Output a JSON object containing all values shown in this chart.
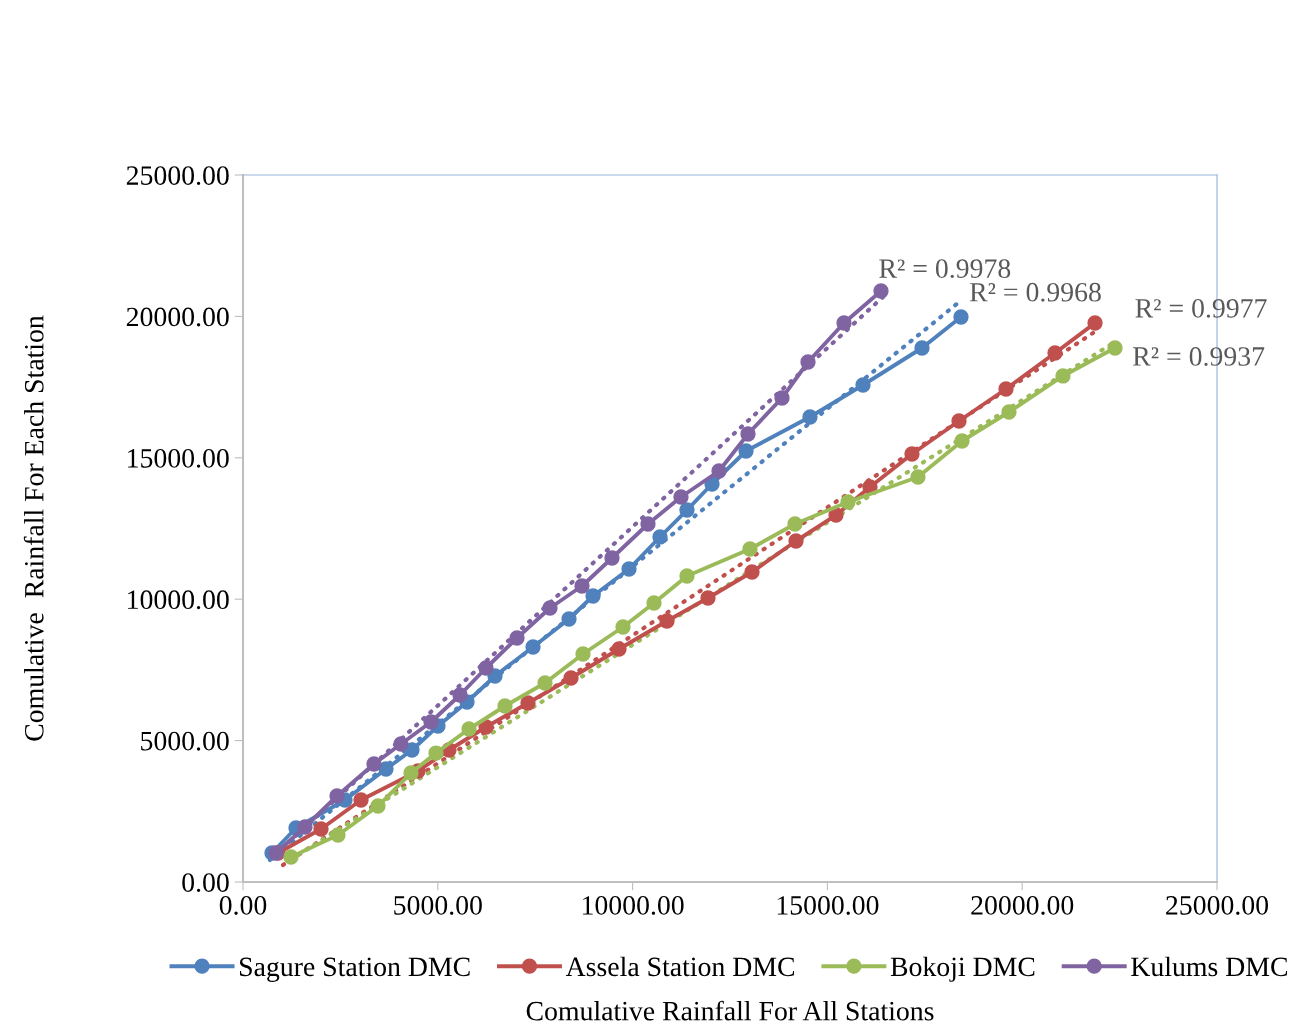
{
  "chart_data": {
    "type": "line",
    "xlabel": "Comulative Rainfall For All Stations",
    "ylabel": "Comulative  Rainfall For Each Station",
    "xlim": [
      0,
      25000
    ],
    "ylim": [
      0,
      25000
    ],
    "xticks": [
      {
        "value": 0,
        "label": "0.00"
      },
      {
        "value": 5000,
        "label": "5000.00"
      },
      {
        "value": 10000,
        "label": "10000.00"
      },
      {
        "value": 15000,
        "label": "15000.00"
      },
      {
        "value": 20000,
        "label": "20000.00"
      },
      {
        "value": 25000,
        "label": "25000.00"
      }
    ],
    "yticks": [
      {
        "value": 0,
        "label": "0.00"
      },
      {
        "value": 5000,
        "label": "5000.00"
      },
      {
        "value": 10000,
        "label": "10000.00"
      },
      {
        "value": 15000,
        "label": "15000.00"
      },
      {
        "value": 20000,
        "label": "20000.00"
      },
      {
        "value": 25000,
        "label": "25000.00"
      }
    ],
    "grid": false,
    "legend": "bottom",
    "marker": "circle",
    "line_style": "solid",
    "series": [
      {
        "name": "Sagure Station DMC",
        "color": "#4f81bd",
        "x": [
          744,
          1360,
          2618,
          3670,
          4338,
          5005,
          5750,
          6468,
          7444,
          8368,
          8984,
          9908,
          10703,
          11396,
          12038,
          12911,
          14553,
          15914,
          17428,
          18429
        ],
        "values": [
          1025,
          1909,
          2900,
          3996,
          4668,
          5516,
          6365,
          7284,
          8310,
          9300,
          10113,
          11068,
          12200,
          13154,
          14074,
          15240,
          16443,
          17574,
          18883,
          19979
        ]
      },
      {
        "name": "Assela Station DMC",
        "color": "#c0504d",
        "x": [
          898,
          2002,
          3029,
          4492,
          5287,
          6237,
          7315,
          8419,
          9651,
          10883,
          11935,
          13065,
          14194,
          15221,
          16093,
          17171,
          18378,
          19584,
          20842,
          21869
        ],
        "values": [
          1025,
          1874,
          2900,
          3925,
          4668,
          5481,
          6330,
          7214,
          8239,
          9229,
          10042,
          10962,
          12058,
          12977,
          13967,
          15134,
          16301,
          17433,
          18706,
          19767
        ]
      },
      {
        "name": "Bokoji DMC",
        "color": "#9bbb59",
        "x": [
          1232,
          2438,
          3465,
          4312,
          4954,
          5801,
          6725,
          7752,
          8727,
          9754,
          10549,
          11396,
          13013,
          14168,
          15529,
          17325,
          18455,
          19661,
          21047,
          22382
        ],
        "values": [
          884,
          1662,
          2687,
          3854,
          4561,
          5410,
          6223,
          7037,
          8062,
          9017,
          9866,
          10820,
          11775,
          12659,
          13437,
          14321,
          15594,
          16620,
          17893,
          18883
        ]
      },
      {
        "name": "Kulums DMC",
        "color": "#8064a2",
        "x": [
          847,
          1591,
          2413,
          3362,
          4055,
          4825,
          5570,
          6237,
          7033,
          7880,
          8701,
          9471,
          10395,
          11242,
          12218,
          12962,
          13835,
          14502,
          15426,
          16376
        ],
        "values": [
          1025,
          1945,
          3041,
          4173,
          4880,
          5658,
          6612,
          7567,
          8628,
          9689,
          10467,
          11457,
          12659,
          13614,
          14533,
          15842,
          17115,
          18388,
          19767,
          20898
        ]
      },
      {
        "type": "line",
        "line_style": "dotted",
        "marker": "none",
        "color": "#8064a2",
        "x": [
          821,
          16453
        ],
        "values": [
          955,
          20721
        ]
      },
      {
        "type": "line",
        "line_style": "dotted",
        "marker": "none",
        "color": "#4f81bd",
        "x": [
          693,
          18352
        ],
        "values": [
          778,
          20474
        ]
      },
      {
        "type": "line",
        "line_style": "dotted",
        "marker": "none",
        "color": "#c0504d",
        "x": [
          1027,
          21817
        ],
        "values": [
          601,
          19413
        ]
      },
      {
        "type": "line",
        "line_style": "dotted",
        "marker": "none",
        "color": "#9bbb59",
        "x": [
          1206,
          22254
        ],
        "values": [
          778,
          18989
        ]
      }
    ],
    "annotations": [
      {
        "text": "R² = 0.9978",
        "x": 16453,
        "y": 20721
      },
      {
        "text": "R² = 0.9968",
        "x": 18352,
        "y": 20474
      },
      {
        "text": "R² = 0.9977",
        "x": 21817,
        "y": 19413
      },
      {
        "text": "R² = 0.9937",
        "x": 22254,
        "y": 18989
      }
    ]
  }
}
